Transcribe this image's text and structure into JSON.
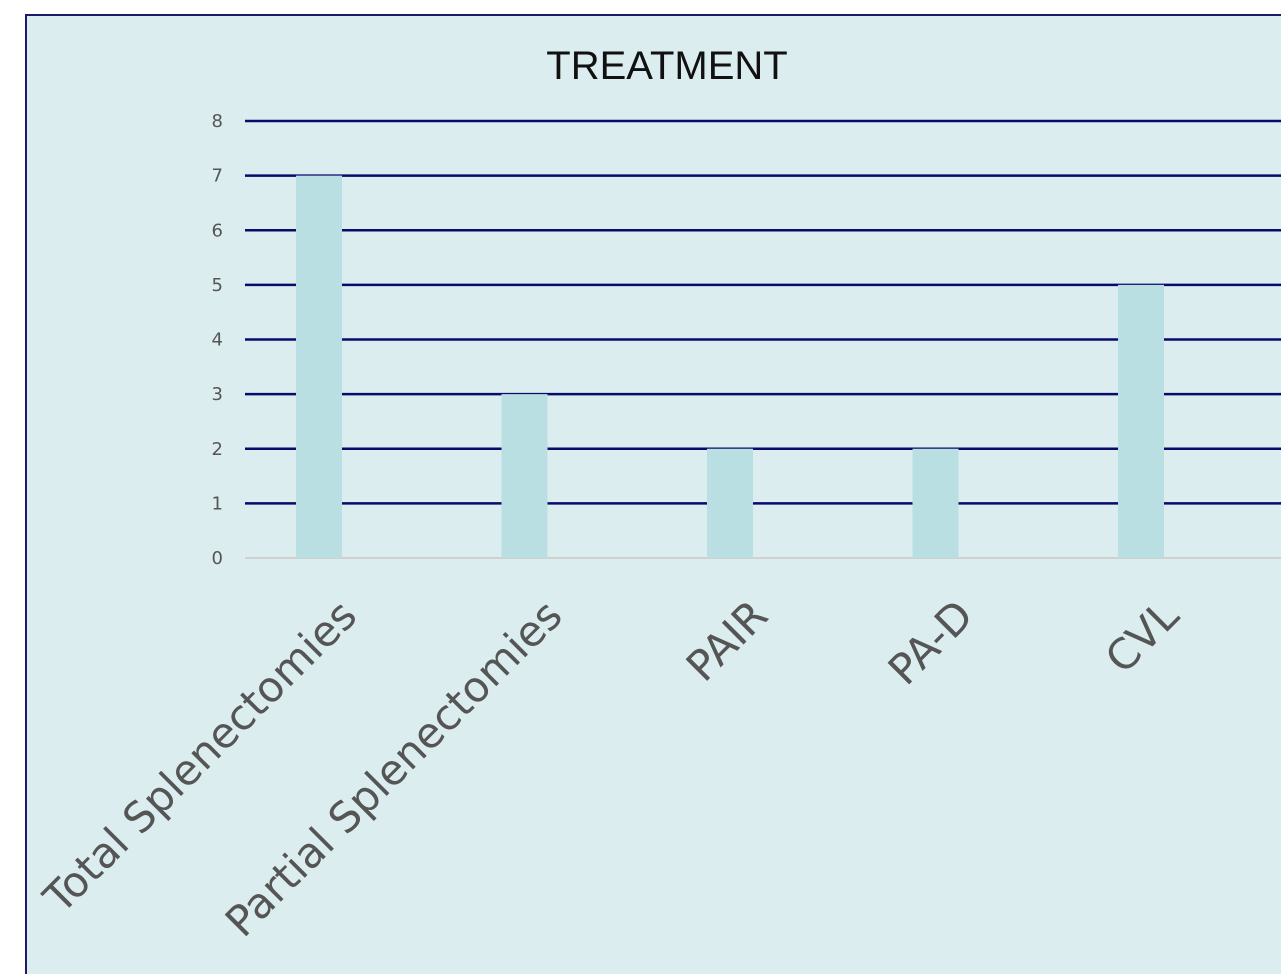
{
  "chart_data": {
    "type": "bar",
    "title": "TREATMENT",
    "xlabel": "",
    "ylabel": "",
    "categories": [
      "Total Splenectomies",
      "Partial Splenectomies",
      "PAIR",
      "PA-D",
      "CVL"
    ],
    "values": [
      7,
      3,
      2,
      2,
      5
    ],
    "ylim": [
      0,
      8
    ],
    "y_ticks": [
      0,
      1,
      2,
      3,
      4,
      5,
      6,
      7,
      8
    ],
    "grid": true,
    "legend": "none",
    "colors": {
      "background": "#dbedee",
      "bar": "#b9dfe2",
      "gridline": "#0a0a6b",
      "baseline": "#d0d0d0",
      "frame": "#1a1a6b",
      "tick_text": "#555555",
      "title_text": "#111111"
    }
  }
}
